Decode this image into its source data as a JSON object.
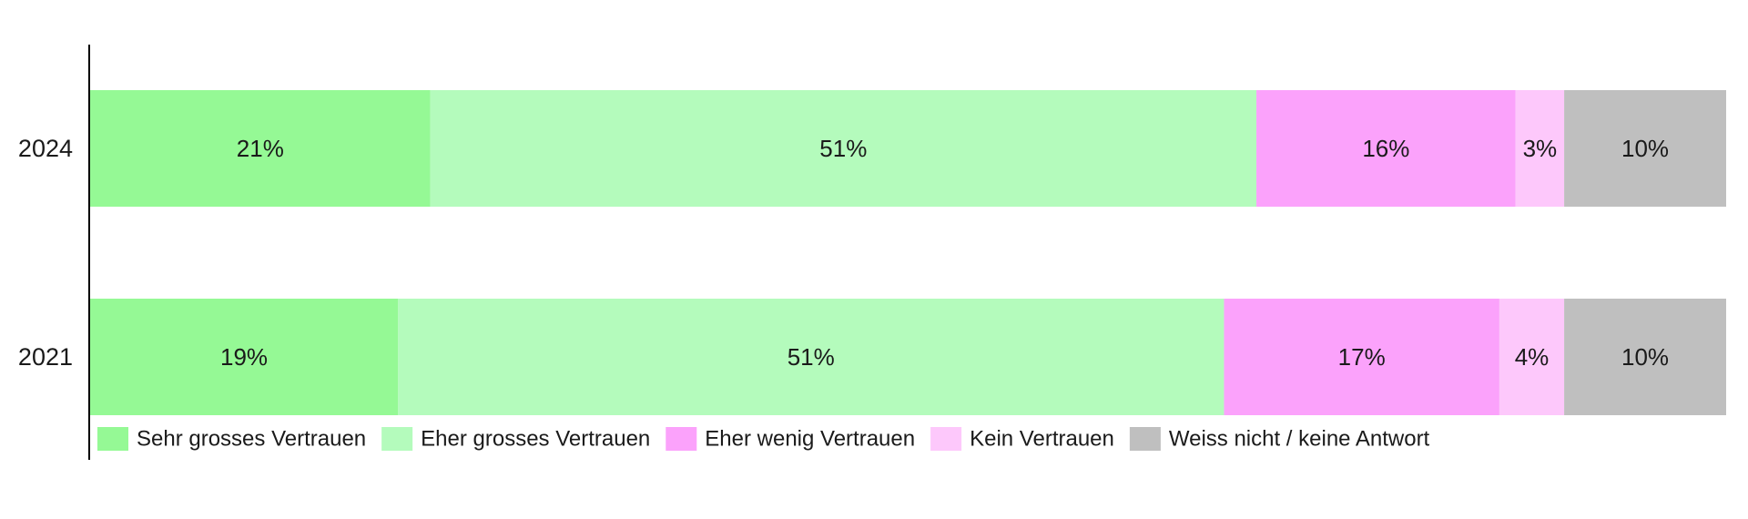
{
  "chart_data": {
    "type": "bar",
    "orientation": "horizontal",
    "stacked": true,
    "categories": [
      "2024",
      "2021"
    ],
    "series": [
      {
        "name": "Sehr grosses Vertrauen",
        "color": "#95f995",
        "values": [
          21,
          19
        ],
        "labels": [
          "21%",
          "19%"
        ]
      },
      {
        "name": "Eher grosses Vertrauen",
        "color": "#b4fbbc",
        "values": [
          51,
          51
        ],
        "labels": [
          "51%",
          "51%"
        ]
      },
      {
        "name": "Eher wenig Vertrauen",
        "color": "#fba2fb",
        "values": [
          16,
          17
        ],
        "labels": [
          "16%",
          "17%"
        ]
      },
      {
        "name": "Kein Vertrauen",
        "color": "#fdc8fb",
        "values": [
          3,
          4
        ],
        "labels": [
          "3%",
          "4%"
        ]
      },
      {
        "name": "Weiss nicht / keine Antwort",
        "color": "#bfbfbf",
        "values": [
          10,
          10
        ],
        "labels": [
          "10%",
          "10%"
        ]
      }
    ],
    "xlim": [
      0,
      101
    ],
    "legend_position": "bottom-left",
    "grid": false
  }
}
